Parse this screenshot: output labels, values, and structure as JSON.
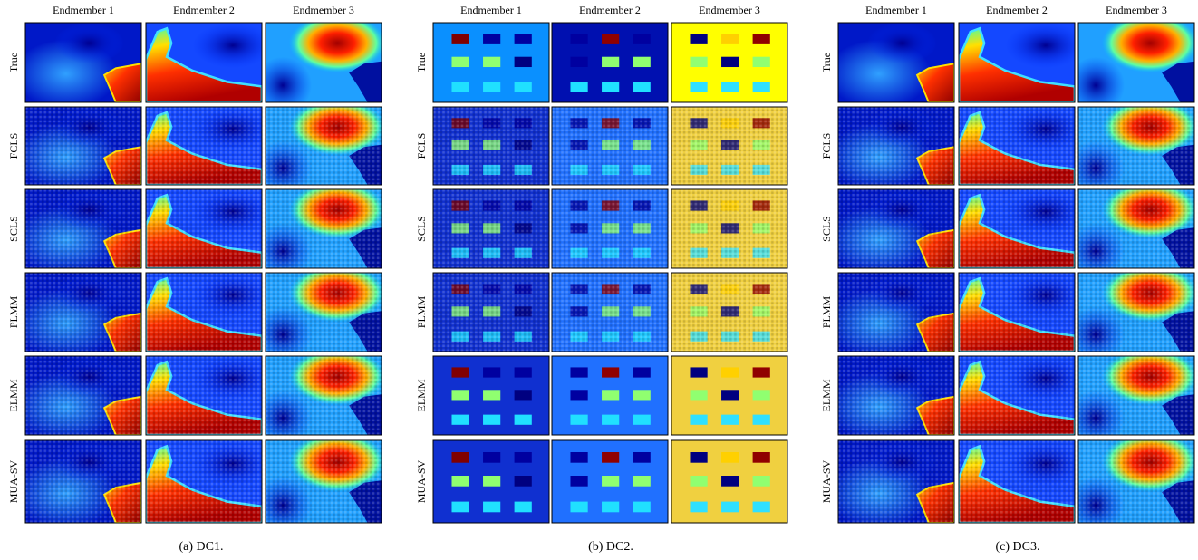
{
  "panels": [
    {
      "caption": "(a) DC1.",
      "columns": [
        "Endmember 1",
        "Endmember 2",
        "Endmember 3"
      ],
      "rows": [
        "True",
        "FCLS",
        "SCLS",
        "PLMM",
        "ELMM",
        "MUA-SV"
      ]
    },
    {
      "caption": "(b) DC2.",
      "columns": [
        "Endmember 1",
        "Endmember 2",
        "Endmember 3"
      ],
      "rows": [
        "True",
        "FCLS",
        "SCLS",
        "PLMM",
        "ELMM",
        "MUA-SV"
      ]
    },
    {
      "caption": "(c) DC3.",
      "columns": [
        "Endmember 1",
        "Endmember 2",
        "Endmember 3"
      ],
      "rows": [
        "True",
        "FCLS",
        "SCLS",
        "PLMM",
        "ELMM",
        "MUA-SV"
      ]
    }
  ]
}
